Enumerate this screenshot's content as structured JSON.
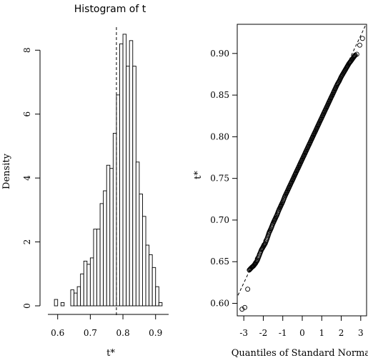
{
  "chart_data": [
    {
      "type": "bar",
      "title": "Histogram of t",
      "xlabel": "t*",
      "ylabel": "Density",
      "xlim": [
        0.57,
        0.94
      ],
      "ylim": [
        0,
        8.9
      ],
      "xticks": [
        "0.6",
        "0.7",
        "0.8",
        "0.9"
      ],
      "yticks": [
        "0",
        "2",
        "4",
        "6",
        "8"
      ],
      "bin_width": 0.01,
      "bins": [
        {
          "x0": 0.59,
          "density": 0.2
        },
        {
          "x0": 0.6,
          "density": 0.0
        },
        {
          "x0": 0.61,
          "density": 0.1
        },
        {
          "x0": 0.62,
          "density": 0.0
        },
        {
          "x0": 0.63,
          "density": 0.0
        },
        {
          "x0": 0.64,
          "density": 0.5
        },
        {
          "x0": 0.65,
          "density": 0.4
        },
        {
          "x0": 0.66,
          "density": 0.6
        },
        {
          "x0": 0.67,
          "density": 1.0
        },
        {
          "x0": 0.68,
          "density": 1.4
        },
        {
          "x0": 0.69,
          "density": 1.3
        },
        {
          "x0": 0.7,
          "density": 1.5
        },
        {
          "x0": 0.71,
          "density": 2.4
        },
        {
          "x0": 0.72,
          "density": 2.4
        },
        {
          "x0": 0.73,
          "density": 3.2
        },
        {
          "x0": 0.74,
          "density": 3.6
        },
        {
          "x0": 0.75,
          "density": 4.4
        },
        {
          "x0": 0.76,
          "density": 4.3
        },
        {
          "x0": 0.77,
          "density": 5.4
        },
        {
          "x0": 0.78,
          "density": 6.6
        },
        {
          "x0": 0.79,
          "density": 8.2
        },
        {
          "x0": 0.8,
          "density": 8.5
        },
        {
          "x0": 0.81,
          "density": 7.5
        },
        {
          "x0": 0.82,
          "density": 8.3
        },
        {
          "x0": 0.83,
          "density": 7.5
        },
        {
          "x0": 0.84,
          "density": 4.5
        },
        {
          "x0": 0.85,
          "density": 3.5
        },
        {
          "x0": 0.86,
          "density": 2.8
        },
        {
          "x0": 0.87,
          "density": 1.9
        },
        {
          "x0": 0.88,
          "density": 1.6
        },
        {
          "x0": 0.89,
          "density": 1.2
        },
        {
          "x0": 0.9,
          "density": 0.6
        },
        {
          "x0": 0.91,
          "density": 0.1
        },
        {
          "x0": 0.92,
          "density": 0.0
        }
      ],
      "reference_line": {
        "x": 0.78,
        "style": "dashed"
      }
    },
    {
      "type": "scatter",
      "title": "",
      "xlabel": "Quantiles of Standard Normal",
      "ylabel": "t*",
      "xlim": [
        -3.3,
        3.3
      ],
      "ylim": [
        0.585,
        0.935
      ],
      "xticks": [
        "-3",
        "-2",
        "-1",
        "0",
        "1",
        "2",
        "3"
      ],
      "yticks": [
        "0.60",
        "0.65",
        "0.70",
        "0.75",
        "0.80",
        "0.85",
        "0.90"
      ],
      "series": [
        {
          "marker": "open-circle",
          "points": [
            [
              -3.09,
              0.593
            ],
            [
              -2.95,
              0.595
            ],
            [
              -2.8,
              0.617
            ],
            [
              -2.72,
              0.64
            ],
            [
              -2.6,
              0.643
            ],
            [
              -2.5,
              0.645
            ],
            [
              -2.4,
              0.648
            ],
            [
              -2.3,
              0.652
            ],
            [
              -2.2,
              0.658
            ],
            [
              -2.1,
              0.664
            ],
            [
              -2.0,
              0.668
            ],
            [
              -1.9,
              0.672
            ],
            [
              -1.8,
              0.678
            ],
            [
              -1.7,
              0.685
            ],
            [
              -1.6,
              0.69
            ],
            [
              -1.5,
              0.696
            ],
            [
              -1.4,
              0.701
            ],
            [
              -1.3,
              0.706
            ],
            [
              -1.2,
              0.712
            ],
            [
              -1.1,
              0.717
            ],
            [
              -1.0,
              0.722
            ],
            [
              -0.9,
              0.728
            ],
            [
              -0.8,
              0.733
            ],
            [
              -0.7,
              0.738
            ],
            [
              -0.6,
              0.743
            ],
            [
              -0.5,
              0.748
            ],
            [
              -0.4,
              0.753
            ],
            [
              -0.3,
              0.758
            ],
            [
              -0.2,
              0.763
            ],
            [
              -0.1,
              0.768
            ],
            [
              0.0,
              0.773
            ],
            [
              0.1,
              0.778
            ],
            [
              0.2,
              0.783
            ],
            [
              0.3,
              0.788
            ],
            [
              0.4,
              0.793
            ],
            [
              0.5,
              0.798
            ],
            [
              0.6,
              0.803
            ],
            [
              0.7,
              0.808
            ],
            [
              0.8,
              0.813
            ],
            [
              0.9,
              0.818
            ],
            [
              1.0,
              0.823
            ],
            [
              1.1,
              0.828
            ],
            [
              1.2,
              0.833
            ],
            [
              1.3,
              0.838
            ],
            [
              1.4,
              0.843
            ],
            [
              1.5,
              0.848
            ],
            [
              1.6,
              0.853
            ],
            [
              1.7,
              0.858
            ],
            [
              1.8,
              0.863
            ],
            [
              1.9,
              0.867
            ],
            [
              2.0,
              0.872
            ],
            [
              2.1,
              0.876
            ],
            [
              2.2,
              0.88
            ],
            [
              2.3,
              0.884
            ],
            [
              2.4,
              0.888
            ],
            [
              2.5,
              0.891
            ],
            [
              2.62,
              0.895
            ],
            [
              2.72,
              0.898
            ],
            [
              2.8,
              0.899
            ],
            [
              2.95,
              0.91
            ],
            [
              3.09,
              0.918
            ]
          ]
        }
      ],
      "reference_line": {
        "slope": 0.0495,
        "intercept": 0.773,
        "style": "dashed"
      }
    }
  ]
}
